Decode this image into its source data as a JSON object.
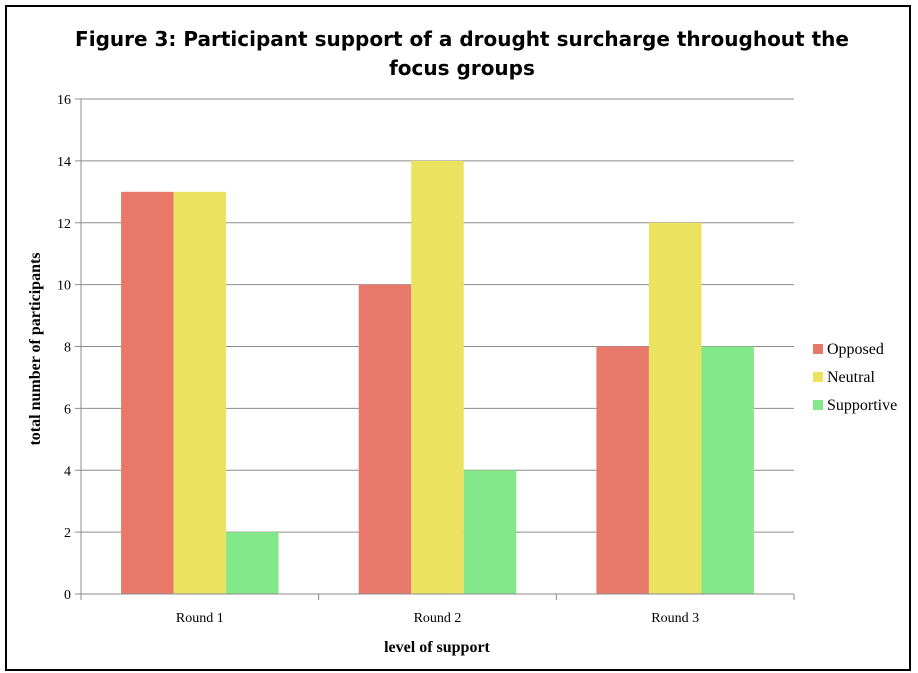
{
  "chart_data": {
    "type": "bar",
    "title": "Figure 3: Participant support of a drought surcharge throughout the focus groups",
    "title_lines": [
      "Figure 3: Participant support of a drought surcharge throughout the",
      "focus groups"
    ],
    "xlabel": "level of support",
    "ylabel": "total number of participants",
    "categories": [
      "Round 1",
      "Round 2",
      "Round 3"
    ],
    "series": [
      {
        "name": "Opposed",
        "values": [
          13,
          10,
          8
        ],
        "color": "#e8786a"
      },
      {
        "name": "Neutral",
        "values": [
          13,
          14,
          12
        ],
        "color": "#ebe260"
      },
      {
        "name": "Supportive",
        "values": [
          2,
          4,
          8
        ],
        "color": "#82e88a"
      }
    ],
    "ylim": [
      0,
      16
    ],
    "yticks": [
      0,
      2,
      4,
      6,
      8,
      10,
      12,
      14,
      16
    ],
    "grid": true,
    "legend_position": "right"
  }
}
